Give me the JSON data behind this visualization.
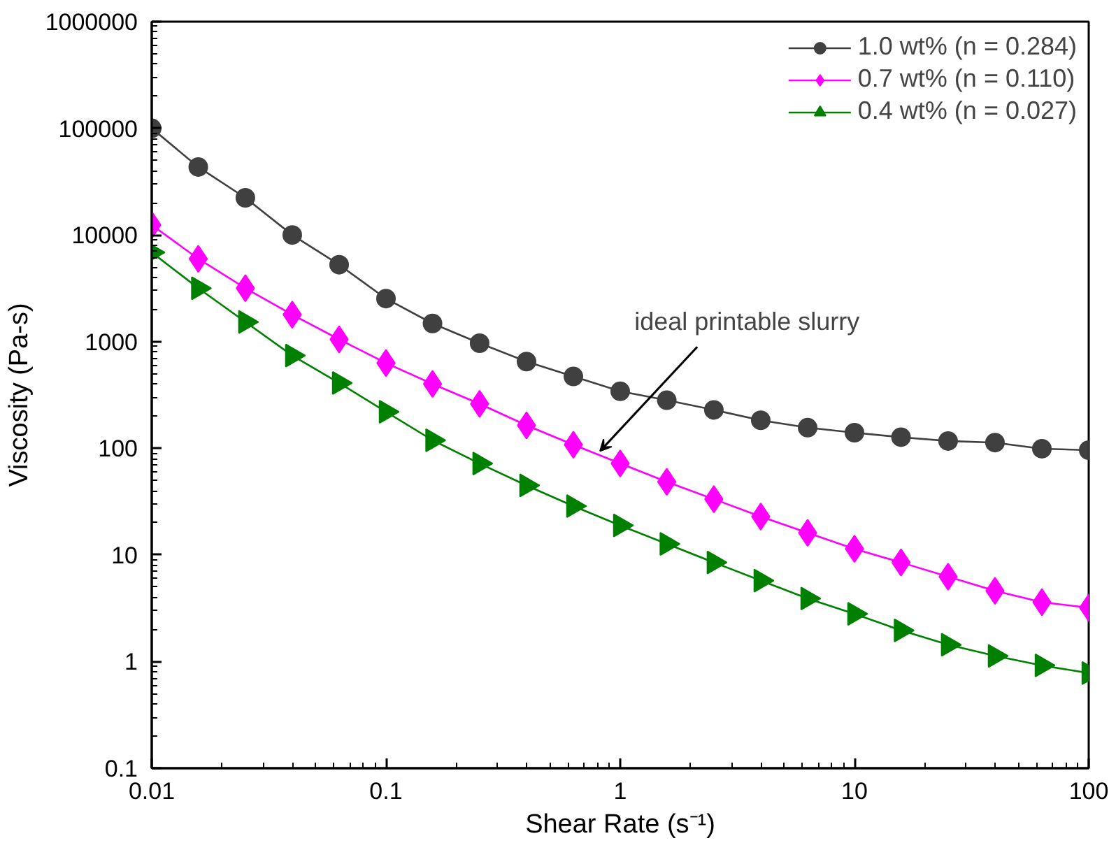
{
  "chart_data": {
    "type": "line",
    "xlabel": "Shear Rate (s⁻¹)",
    "ylabel": "Viscosity (Pa-s)",
    "log": "xy",
    "grid": false,
    "legend": "top right",
    "line_style": "solid",
    "x": [
      0.01,
      0.0158,
      0.0251,
      0.0398,
      0.0631,
      0.1,
      0.158,
      0.251,
      0.398,
      0.631,
      1,
      1.58,
      2.51,
      3.98,
      6.31,
      10,
      15.8,
      25.1,
      39.8,
      63.1,
      100
    ],
    "xlim": [
      0.01,
      100
    ],
    "xticks": [
      0.01,
      0.1,
      1,
      10,
      100
    ],
    "ylim": [
      0.1,
      1000000
    ],
    "yticks": [
      0.1,
      1,
      10,
      100,
      1000,
      10000,
      100000,
      1000000
    ],
    "series": [
      {
        "name": "1.0 wt% (n = 0.284)",
        "color": "#404040",
        "marker": "circle",
        "values": [
          100000,
          43400,
          22300,
          10000,
          5260,
          2530,
          1480,
          966,
          650,
          471,
          342,
          282,
          229,
          183,
          156,
          140,
          127,
          117,
          113,
          99,
          96
        ]
      },
      {
        "name": "0.7 wt% (n = 0.110)",
        "color": "#ff00ff",
        "marker": "diamond",
        "values": [
          12400,
          5980,
          3170,
          1790,
          1050,
          630,
          401,
          261,
          164,
          108,
          72,
          48.5,
          33.3,
          22.9,
          16.1,
          11.4,
          8.5,
          6.25,
          4.6,
          3.6,
          3.2
        ]
      },
      {
        "name": "0.4 wt% (n = 0.027)",
        "color": "#008000",
        "marker": "triangle",
        "values": [
          6870,
          3170,
          1530,
          740,
          409,
          220,
          119,
          72,
          44.8,
          28.7,
          18.9,
          12.7,
          8.5,
          5.75,
          3.9,
          2.8,
          1.96,
          1.44,
          1.13,
          0.92,
          0.78
        ]
      }
    ],
    "annotations": [
      {
        "text": "ideal printable slurry",
        "x": 0.82,
        "y": 94
      }
    ]
  }
}
